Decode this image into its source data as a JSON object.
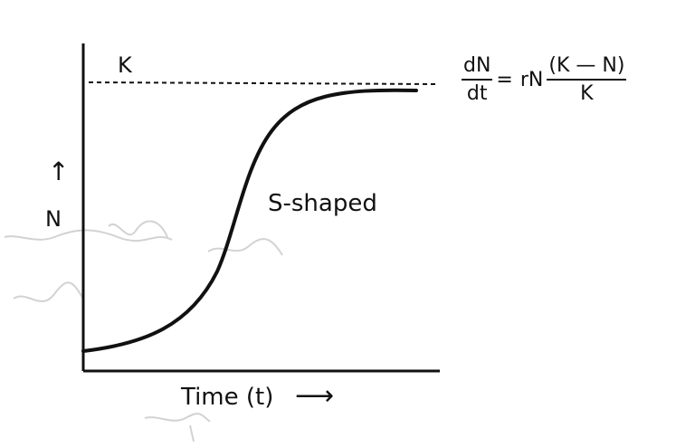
{
  "figure": {
    "carrying_capacity_label": "K",
    "y_axis_label": "N",
    "y_axis_arrow": "↑",
    "x_axis_label": "Time (t)",
    "x_axis_arrow": "⟶",
    "curve_label": "S-shaped",
    "curve_type": "logistic (sigmoid) growth",
    "asymptote_style": "dashed"
  },
  "equation": {
    "lhs_numerator": "dN",
    "lhs_denominator": "dt",
    "equals": "=",
    "coefficient": "rN",
    "rhs_numerator": "(K — N)",
    "rhs_denominator": "K"
  },
  "colors": {
    "ink": "#111111",
    "background": "#ffffff",
    "scribble": "#c8c8c8"
  }
}
